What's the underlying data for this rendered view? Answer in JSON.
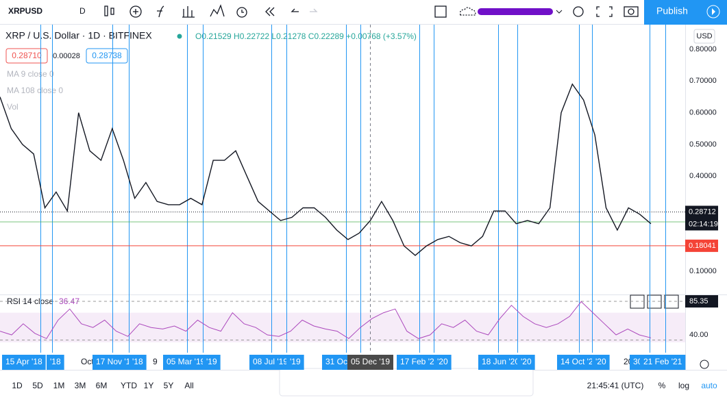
{
  "toolbar": {
    "symbol": "XRPUSD",
    "interval": "D",
    "publish": "Publish"
  },
  "legend": {
    "title": "XRP / U.S. Dollar · 1D · BITFINEX",
    "ohlc": "O0.21529 H0.22722 L0.21278 C0.22289 +0.00768 (+3.57%)",
    "bid": "0.28710",
    "spread": "0.00028",
    "ask": "0.28738",
    "indicators": [
      "MA 9 close 0",
      "MA 108 close 0",
      "Vol"
    ]
  },
  "price_axis": {
    "currency": "USD",
    "ticks": [
      {
        "value": 0.8,
        "label": "0.80000"
      },
      {
        "value": 0.7,
        "label": "0.70000"
      },
      {
        "value": 0.6,
        "label": "0.60000"
      },
      {
        "value": 0.5,
        "label": "0.50000"
      },
      {
        "value": 0.4,
        "label": "0.40000"
      },
      {
        "value": 0.1,
        "label": "0.10000"
      }
    ],
    "last_price": {
      "value": 0.28712,
      "label": "0.28712"
    },
    "countdown": "02:14:19",
    "line_price": {
      "value": 0.18041,
      "label": "0.18041"
    }
  },
  "price_series": [
    0.65,
    0.55,
    0.5,
    0.47,
    0.3,
    0.35,
    0.29,
    0.6,
    0.48,
    0.45,
    0.55,
    0.45,
    0.33,
    0.38,
    0.32,
    0.31,
    0.31,
    0.33,
    0.31,
    0.45,
    0.45,
    0.48,
    0.4,
    0.32,
    0.29,
    0.26,
    0.27,
    0.3,
    0.3,
    0.27,
    0.23,
    0.2,
    0.22,
    0.26,
    0.32,
    0.26,
    0.18,
    0.15,
    0.18,
    0.2,
    0.21,
    0.19,
    0.18,
    0.21,
    0.29,
    0.29,
    0.25,
    0.26,
    0.25,
    0.3,
    0.6,
    0.69,
    0.64,
    0.53,
    0.3,
    0.23,
    0.3,
    0.28,
    0.25
  ],
  "rsi": {
    "label": "RSI 14 close",
    "value": "36.47",
    "ticks": [
      85.35,
      {
        "value": 40,
        "label": "40.00"
      }
    ],
    "values": [
      45,
      40,
      55,
      42,
      35,
      60,
      75,
      55,
      50,
      60,
      45,
      38,
      55,
      50,
      48,
      52,
      45,
      60,
      50,
      45,
      70,
      55,
      50,
      40,
      38,
      45,
      60,
      52,
      48,
      45,
      35,
      50,
      62,
      70,
      75,
      45,
      35,
      40,
      55,
      50,
      60,
      45,
      40,
      62,
      80,
      65,
      55,
      50,
      55,
      65,
      85,
      70,
      55,
      40,
      48,
      40,
      36
    ]
  },
  "time_axis": {
    "labels": [
      "15 Apr '18",
      "'18",
      "Oct",
      "17 Nov '18",
      "'18",
      "9",
      "05 Mar '19",
      "'19",
      "08 Jul '19",
      "'19",
      "31 Oc",
      "05 Dec '19",
      "17 Feb '20",
      "'20",
      "18 Jun '20",
      "'20",
      "14 Oct '20",
      "'20",
      "20",
      "30",
      "21 Feb '21"
    ]
  },
  "bottom_bar": {
    "ranges": [
      "1D",
      "5D",
      "1M",
      "3M",
      "6M",
      "YTD",
      "1Y",
      "5Y",
      "All"
    ],
    "clock": "21:45:41 (UTC)",
    "percent": "%",
    "log": "log",
    "auto": "auto"
  }
}
